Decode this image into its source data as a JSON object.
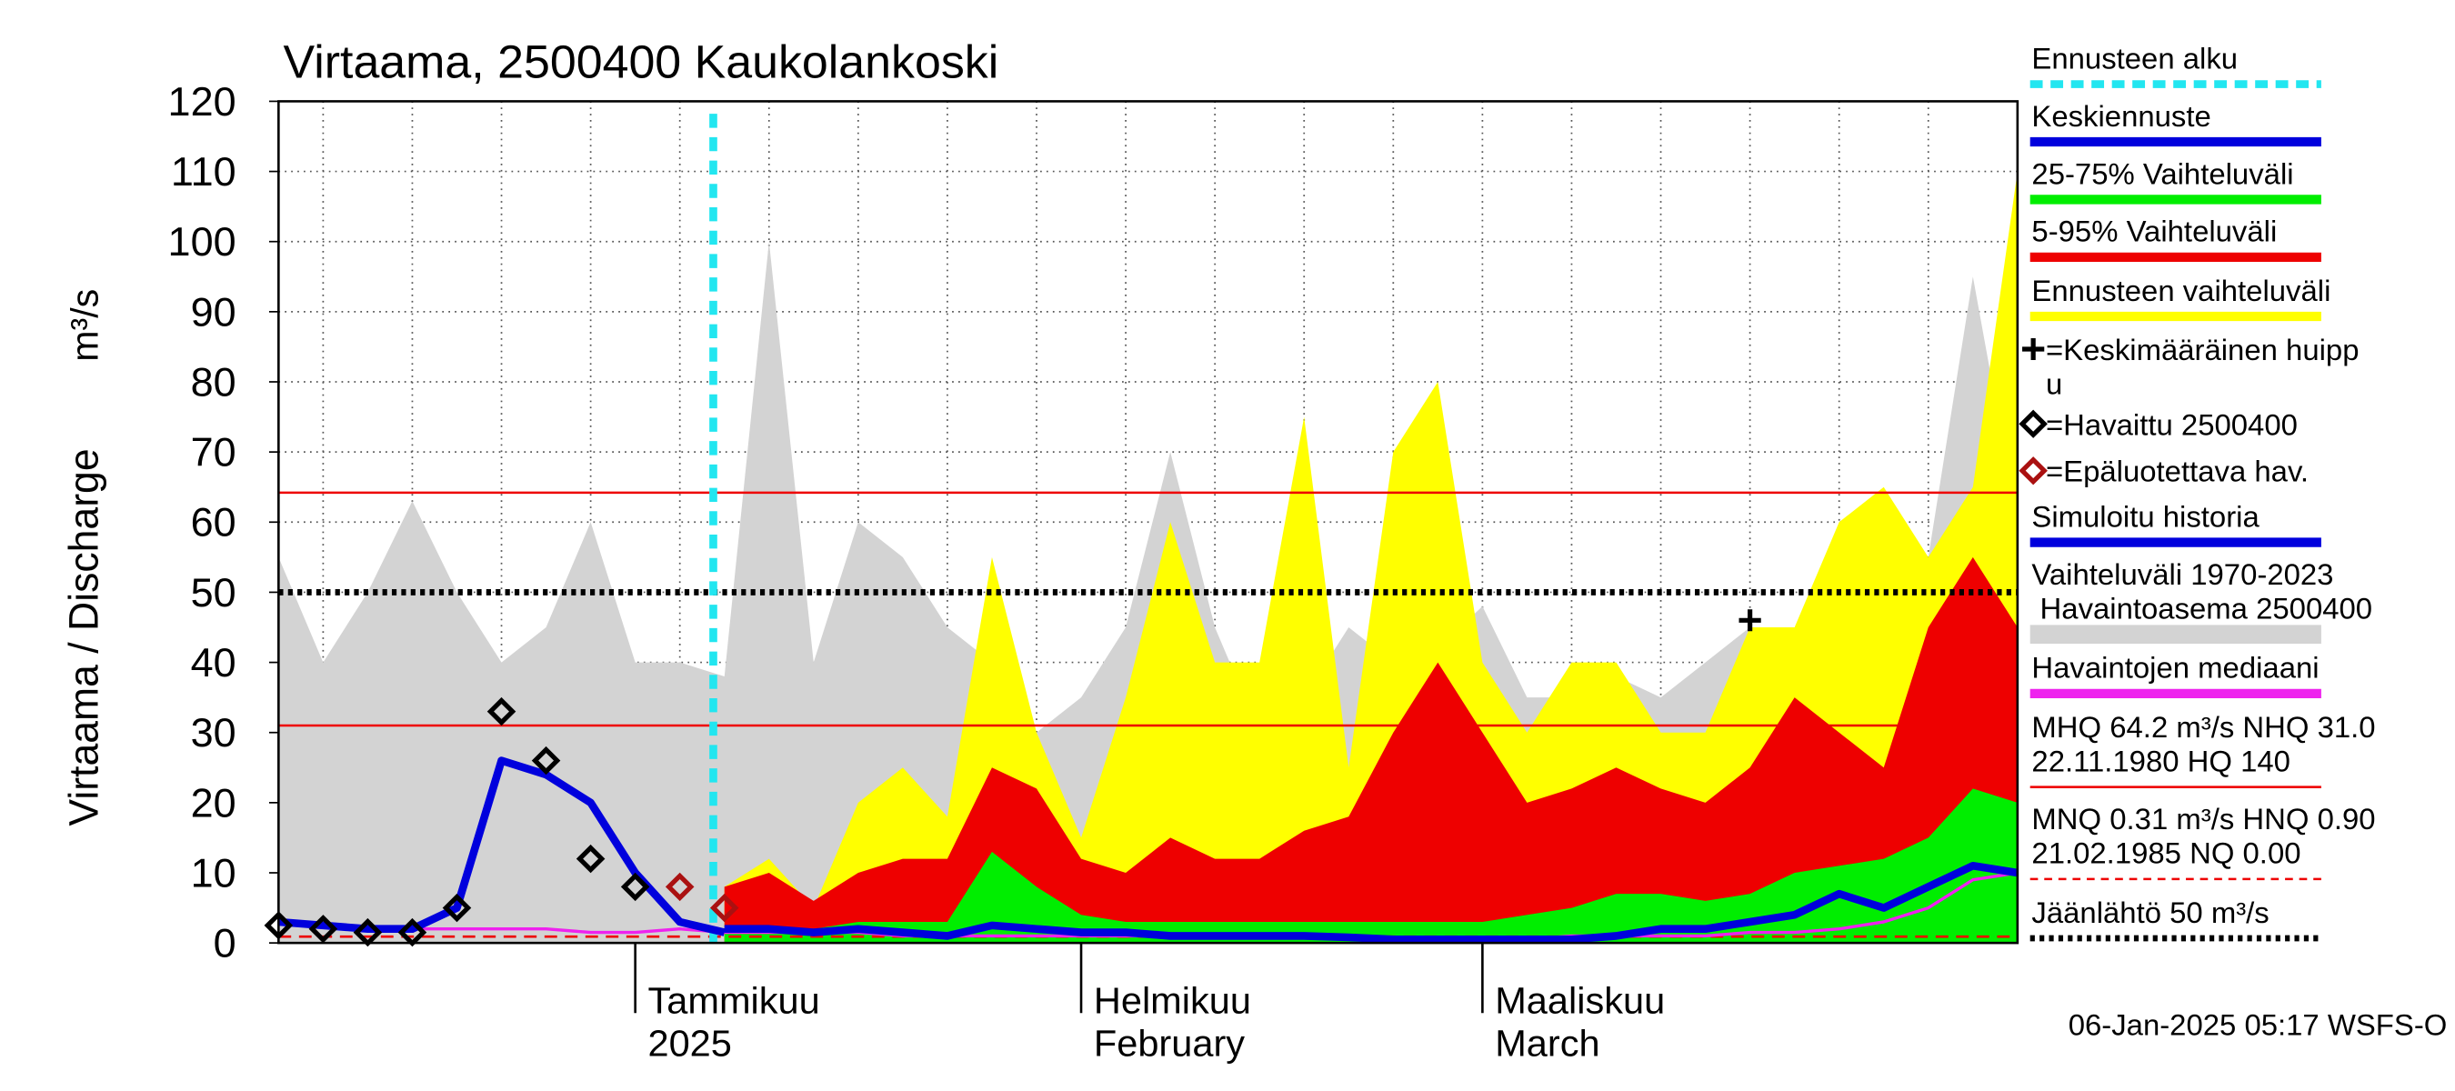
{
  "chart_data": {
    "type": "line",
    "title": "Virtaama, 2500400 Kaukolankoski",
    "y_label": "Virtaama / Discharge",
    "y_unit": "m³/s",
    "footer": "06-Jan-2025 05:17 WSFS-O",
    "categories": [
      null,
      null,
      null,
      null,
      null,
      null,
      null,
      null,
      "Tammikuu\n2025",
      null,
      null,
      null,
      null,
      null,
      null,
      null,
      null,
      null,
      "Helmikuu\nFebruary",
      null,
      null,
      null,
      null,
      null,
      null,
      null,
      null,
      "Maaliskuu\nMarch",
      null,
      null,
      null,
      null,
      null,
      null,
      null,
      null,
      null,
      null,
      null,
      null
    ],
    "ylim": [
      0,
      120
    ],
    "yticks": [
      0,
      10,
      20,
      30,
      40,
      50,
      60,
      70,
      80,
      90,
      100,
      110,
      120
    ],
    "grid": true,
    "forecast_start": 9.75,
    "forecast_start_color": "#22e6f0",
    "series": [
      {
        "kind": "area",
        "color": "#d3d3d3",
        "values": [
          55,
          40,
          50,
          63,
          50,
          40,
          45,
          60,
          40,
          40,
          38,
          100,
          40,
          60,
          55,
          45,
          40,
          30,
          35,
          45,
          70,
          45,
          30,
          35,
          45,
          40,
          42,
          48,
          35,
          35,
          38,
          35,
          40,
          45,
          45,
          45,
          50,
          55,
          95,
          60
        ]
      },
      {
        "kind": "area",
        "color": "#ffff00",
        "values": [
          null,
          null,
          null,
          null,
          null,
          null,
          null,
          null,
          null,
          null,
          8,
          12,
          5,
          20,
          25,
          18,
          55,
          30,
          15,
          35,
          60,
          40,
          40,
          75,
          25,
          70,
          80,
          40,
          30,
          40,
          40,
          30,
          30,
          45,
          45,
          60,
          65,
          55,
          65,
          110
        ]
      },
      {
        "kind": "area",
        "color": "#ee0000",
        "values": [
          null,
          null,
          null,
          null,
          null,
          null,
          null,
          null,
          null,
          null,
          8,
          10,
          6,
          10,
          12,
          12,
          25,
          22,
          12,
          10,
          15,
          12,
          12,
          16,
          18,
          30,
          40,
          30,
          20,
          22,
          25,
          22,
          20,
          25,
          35,
          30,
          25,
          45,
          55,
          45
        ]
      },
      {
        "kind": "area",
        "color": "#00ee00",
        "values": [
          null,
          null,
          null,
          null,
          null,
          null,
          null,
          null,
          null,
          null,
          2,
          2,
          2,
          3,
          3,
          3,
          13,
          8,
          4,
          3,
          3,
          3,
          3,
          3,
          3,
          3,
          3,
          3,
          4,
          5,
          7,
          7,
          6,
          7,
          10,
          11,
          12,
          15,
          22,
          20
        ]
      },
      {
        "kind": "line",
        "color": "#ee22ee",
        "width": 2,
        "values": [
          3,
          2.5,
          2,
          2,
          2,
          2,
          2,
          1.5,
          1.5,
          2,
          1.5,
          1.5,
          1.5,
          1.5,
          1,
          1,
          1,
          1,
          1,
          1,
          1,
          1,
          1,
          1,
          0.5,
          0.5,
          0.5,
          0.5,
          0.5,
          1,
          1,
          1,
          1,
          1.5,
          1.5,
          2,
          3,
          5,
          9,
          10
        ]
      },
      {
        "kind": "line",
        "color": "#0000dd",
        "width": 5,
        "values": [
          3,
          2.5,
          2,
          2,
          5,
          26,
          24,
          20,
          10,
          3,
          1.5,
          null,
          null,
          null,
          null,
          null,
          null,
          null,
          null,
          null,
          null,
          null,
          null,
          null,
          null,
          null,
          null,
          null,
          null,
          null,
          null,
          null,
          null,
          null,
          null,
          null,
          null,
          null,
          null,
          null
        ]
      },
      {
        "kind": "line",
        "color": "#0000dd",
        "width": 5,
        "values": [
          null,
          null,
          null,
          null,
          null,
          null,
          null,
          null,
          null,
          null,
          2,
          2,
          1.5,
          2,
          1.5,
          1,
          2.5,
          2,
          1.5,
          1.5,
          1,
          1,
          1,
          1,
          0.8,
          0.5,
          0.5,
          0.5,
          0.5,
          0.5,
          1,
          2,
          2,
          3,
          4,
          7,
          5,
          8,
          11,
          10
        ]
      },
      {
        "kind": "diamond",
        "color": "#000000",
        "values": [
          2.5,
          2,
          1.5,
          1.5,
          5,
          33,
          26,
          12,
          8,
          null,
          null,
          null,
          null,
          null,
          null,
          null,
          null,
          null,
          null,
          null,
          null,
          null,
          null,
          null,
          null,
          null,
          null,
          null,
          null,
          null,
          null,
          null,
          null,
          null,
          null,
          null,
          null,
          null,
          null,
          null
        ]
      },
      {
        "kind": "diamond",
        "color": "#aa1111",
        "values": [
          null,
          null,
          null,
          null,
          null,
          null,
          null,
          null,
          null,
          8,
          5,
          null,
          null,
          null,
          null,
          null,
          null,
          null,
          null,
          null,
          null,
          null,
          null,
          null,
          null,
          null,
          null,
          null,
          null,
          null,
          null,
          null,
          null,
          null,
          null,
          null,
          null,
          null,
          null,
          null
        ]
      },
      {
        "kind": "plus",
        "color": "#000000",
        "values": [
          null,
          null,
          null,
          null,
          null,
          null,
          null,
          null,
          null,
          null,
          null,
          null,
          null,
          null,
          null,
          null,
          null,
          null,
          null,
          null,
          null,
          null,
          null,
          null,
          null,
          null,
          null,
          null,
          null,
          null,
          null,
          null,
          null,
          46,
          null,
          null,
          null,
          null,
          null,
          null
        ]
      }
    ],
    "hlines": [
      {
        "value": 64.2,
        "color": "#ee0000",
        "style": "solid"
      },
      {
        "value": 31.0,
        "color": "#ee0000",
        "style": "solid"
      },
      {
        "value": 0.9,
        "color": "#ee0000",
        "style": "dashed"
      },
      {
        "value": 50,
        "color": "#000000",
        "style": "dotted"
      }
    ],
    "legend": [
      {
        "label": "Ennusteen alku",
        "color": "#22e6f0",
        "style": "dashed"
      },
      {
        "label": "Keskiennuste",
        "color": "#0000dd",
        "style": "solid"
      },
      {
        "label": "25-75% Vaihteluväli",
        "color": "#00ee00",
        "style": "solid"
      },
      {
        "label": "5-95% Vaihteluväli",
        "color": "#ee0000",
        "style": "solid"
      },
      {
        "label": "Ennusteen vaihteluväli",
        "color": "#ffff00",
        "style": "solid"
      },
      {
        "label": "=Keskimääräinen huipp\nu",
        "color": "#000000",
        "style": "plus"
      },
      {
        "label": "=Havaittu 2500400",
        "color": "#000000",
        "style": "diamond"
      },
      {
        "label": "=Epäluotettava hav.",
        "color": "#aa1111",
        "style": "diamond"
      },
      {
        "label": "Simuloitu historia",
        "color": "#0000dd",
        "style": "solid"
      },
      {
        "label": "Vaihteluväli 1970-2023\n Havaintoasema 2500400",
        "color": "#d3d3d3",
        "style": "thick"
      },
      {
        "label": "Havaintojen mediaani",
        "color": "#ee22ee",
        "style": "solid"
      },
      {
        "label": "MHQ 64.2 m³/s NHQ 31.0\n22.11.1980 HQ  140",
        "color": "#ee0000",
        "style": "thin"
      },
      {
        "label": "MNQ 0.31 m³/s HNQ 0.90\n21.02.1985 NQ 0.00",
        "color": "#ee0000",
        "style": "thindashed"
      },
      {
        "label": "Jäänlähtö 50 m³/s",
        "color": "#000000",
        "style": "dotted"
      }
    ]
  }
}
